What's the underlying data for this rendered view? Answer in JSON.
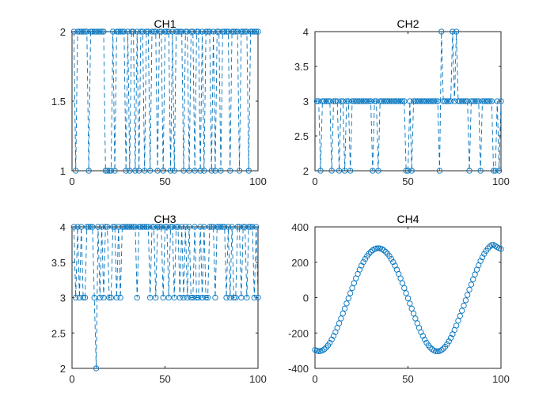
{
  "chart_data": [
    {
      "type": "line",
      "title": "CH1",
      "xlim": [
        0,
        100
      ],
      "ylim": [
        1,
        2
      ],
      "xticks": [
        0,
        50,
        100
      ],
      "yticks": [
        1,
        1.5,
        2
      ],
      "xtick_labels": [
        "0",
        "50",
        "100"
      ],
      "ytick_labels": [
        "1",
        "1.5",
        "2"
      ],
      "color": "#0072BD",
      "line_style": "dashed",
      "marker": "circle-open",
      "grid": false,
      "series": [
        {
          "x": [
            1,
            2,
            3,
            4,
            5,
            6,
            7,
            8,
            9,
            10,
            11,
            12,
            13,
            14,
            15,
            16,
            17,
            18,
            19,
            20,
            21,
            22,
            23,
            24,
            25,
            26,
            27,
            28,
            29,
            30,
            31,
            32,
            33,
            34,
            35,
            36,
            37,
            38,
            39,
            40,
            41,
            42,
            43,
            44,
            45,
            46,
            47,
            48,
            49,
            50,
            51,
            52,
            53,
            54,
            55,
            56,
            57,
            58,
            59,
            60,
            61,
            62,
            63,
            64,
            65,
            66,
            67,
            68,
            69,
            70,
            71,
            72,
            73,
            74,
            75,
            76,
            77,
            78,
            79,
            80,
            81,
            82,
            83,
            84,
            85,
            86,
            87,
            88,
            89,
            90,
            91,
            92,
            93,
            94,
            95,
            96,
            97,
            98,
            99,
            100
          ],
          "y": [
            2,
            1,
            2,
            2,
            2,
            2,
            2,
            2,
            1,
            2,
            2,
            2,
            2,
            2,
            2,
            2,
            2,
            1,
            1,
            1,
            1,
            2,
            1,
            2,
            2,
            2,
            2,
            2,
            1,
            2,
            1,
            2,
            2,
            1,
            2,
            1,
            2,
            2,
            1,
            2,
            2,
            1,
            2,
            2,
            2,
            1,
            2,
            2,
            1,
            2,
            2,
            2,
            1,
            2,
            1,
            2,
            2,
            2,
            2,
            1,
            2,
            2,
            1,
            2,
            2,
            1,
            2,
            2,
            1,
            2,
            1,
            2,
            2,
            2,
            1,
            2,
            1,
            2,
            2,
            1,
            2,
            2,
            2,
            2,
            1,
            2,
            2,
            2,
            2,
            1,
            2,
            2,
            2,
            2,
            1,
            2,
            2,
            2,
            2,
            2
          ]
        }
      ]
    },
    {
      "type": "line",
      "title": "CH2",
      "xlim": [
        0,
        100
      ],
      "ylim": [
        2,
        4
      ],
      "xticks": [
        0,
        50,
        100
      ],
      "yticks": [
        2,
        2.5,
        3,
        3.5,
        4
      ],
      "xtick_labels": [
        "0",
        "50",
        "100"
      ],
      "ytick_labels": [
        "2",
        "2.5",
        "3",
        "3.5",
        "4"
      ],
      "color": "#0072BD",
      "line_style": "dashed",
      "marker": "circle-open",
      "grid": false,
      "series": [
        {
          "x": [
            1,
            2,
            3,
            4,
            5,
            6,
            7,
            8,
            9,
            10,
            11,
            12,
            13,
            14,
            15,
            16,
            17,
            18,
            19,
            20,
            21,
            22,
            23,
            24,
            25,
            26,
            27,
            28,
            29,
            30,
            31,
            32,
            33,
            34,
            35,
            36,
            37,
            38,
            39,
            40,
            41,
            42,
            43,
            44,
            45,
            46,
            47,
            48,
            49,
            50,
            51,
            52,
            53,
            54,
            55,
            56,
            57,
            58,
            59,
            60,
            61,
            62,
            63,
            64,
            65,
            66,
            67,
            68,
            69,
            70,
            71,
            72,
            73,
            74,
            75,
            76,
            77,
            78,
            79,
            80,
            81,
            82,
            83,
            84,
            85,
            86,
            87,
            88,
            89,
            90,
            91,
            92,
            93,
            94,
            95,
            96,
            97,
            98,
            99,
            100
          ],
          "y": [
            3,
            3,
            2,
            3,
            3,
            3,
            3,
            3,
            2,
            3,
            3,
            3,
            2,
            3,
            3,
            2,
            3,
            3,
            2,
            3,
            3,
            3,
            3,
            3,
            3,
            3,
            3,
            3,
            3,
            3,
            2,
            3,
            3,
            2,
            3,
            3,
            3,
            3,
            3,
            3,
            3,
            3,
            3,
            3,
            3,
            3,
            3,
            3,
            2,
            2,
            3,
            2,
            3,
            3,
            3,
            3,
            3,
            3,
            3,
            3,
            3,
            3,
            3,
            3,
            3,
            3,
            2,
            4,
            3,
            3,
            3,
            3,
            3,
            4,
            3,
            4,
            3,
            3,
            3,
            3,
            3,
            3,
            2,
            3,
            3,
            3,
            3,
            3,
            2,
            3,
            3,
            3,
            3,
            3,
            3,
            2,
            2,
            3,
            2,
            3
          ]
        }
      ]
    },
    {
      "type": "line",
      "title": "CH3",
      "xlim": [
        0,
        100
      ],
      "ylim": [
        2,
        4
      ],
      "xticks": [
        0,
        50,
        100
      ],
      "yticks": [
        2,
        2.5,
        3,
        3.5,
        4
      ],
      "xtick_labels": [
        "0",
        "50",
        "100"
      ],
      "ytick_labels": [
        "2",
        "2.5",
        "3",
        "3.5",
        "4"
      ],
      "color": "#0072BD",
      "line_style": "dashed",
      "marker": "circle-open",
      "grid": false,
      "series": [
        {
          "x": [
            1,
            2,
            3,
            4,
            5,
            6,
            7,
            8,
            9,
            10,
            11,
            12,
            13,
            14,
            15,
            16,
            17,
            18,
            19,
            20,
            21,
            22,
            23,
            24,
            25,
            26,
            27,
            28,
            29,
            30,
            31,
            32,
            33,
            34,
            35,
            36,
            37,
            38,
            39,
            40,
            41,
            42,
            43,
            44,
            45,
            46,
            47,
            48,
            49,
            50,
            51,
            52,
            53,
            54,
            55,
            56,
            57,
            58,
            59,
            60,
            61,
            62,
            63,
            64,
            65,
            66,
            67,
            68,
            69,
            70,
            71,
            72,
            73,
            74,
            75,
            76,
            77,
            78,
            79,
            80,
            81,
            82,
            83,
            84,
            85,
            86,
            87,
            88,
            89,
            90,
            91,
            92,
            93,
            94,
            95,
            96,
            97,
            98,
            99,
            100
          ],
          "y": [
            4,
            3,
            4,
            3,
            4,
            3,
            3,
            4,
            4,
            4,
            4,
            3,
            2,
            4,
            3,
            4,
            3,
            4,
            4,
            3,
            3,
            4,
            4,
            3,
            4,
            3,
            4,
            4,
            4,
            4,
            4,
            4,
            4,
            4,
            3,
            4,
            4,
            4,
            4,
            4,
            4,
            3,
            4,
            4,
            3,
            4,
            4,
            4,
            3,
            4,
            4,
            3,
            4,
            4,
            3,
            4,
            4,
            3,
            4,
            3,
            4,
            3,
            4,
            3,
            3,
            4,
            3,
            3,
            4,
            3,
            4,
            3,
            3,
            4,
            4,
            4,
            3,
            4,
            4,
            4,
            4,
            4,
            3,
            4,
            3,
            4,
            3,
            3,
            4,
            4,
            3,
            4,
            4,
            3,
            4,
            4,
            4,
            3,
            4,
            3
          ]
        }
      ]
    },
    {
      "type": "scatter",
      "title": "CH4",
      "xlim": [
        0,
        100
      ],
      "ylim": [
        -400,
        400
      ],
      "xticks": [
        0,
        50,
        100
      ],
      "yticks": [
        -400,
        -200,
        0,
        200,
        400
      ],
      "xtick_labels": [
        "0",
        "50",
        "100"
      ],
      "ytick_labels": [
        "-400",
        "-200",
        "0",
        "200",
        "400"
      ],
      "color": "#0072BD",
      "marker": "circle-open",
      "grid": false,
      "series": [
        {
          "x": [
            0,
            1,
            2,
            3,
            4,
            5,
            6,
            7,
            8,
            9,
            10,
            11,
            12,
            13,
            14,
            15,
            16,
            17,
            18,
            19,
            20,
            21,
            22,
            23,
            24,
            25,
            26,
            27,
            28,
            29,
            30,
            31,
            32,
            33,
            34,
            35,
            36,
            37,
            38,
            39,
            40,
            41,
            42,
            43,
            44,
            45,
            46,
            47,
            48,
            49,
            50,
            51,
            52,
            53,
            54,
            55,
            56,
            57,
            58,
            59,
            60,
            61,
            62,
            63,
            64,
            65,
            66,
            67,
            68,
            69,
            70,
            71,
            72,
            73,
            74,
            75,
            76,
            77,
            78,
            79,
            80,
            81,
            82,
            83,
            84,
            85,
            86,
            87,
            88,
            89,
            90,
            91,
            92,
            93,
            94,
            95,
            96,
            97,
            98,
            99,
            100
          ],
          "y": [
            -296,
            -300,
            -303,
            -302,
            -299,
            -292,
            -283,
            -270,
            -255,
            -237,
            -217,
            -195,
            -171,
            -145,
            -118,
            -90,
            -62,
            -33,
            -4,
            25,
            54,
            82,
            109,
            134,
            158,
            181,
            201,
            219,
            235,
            248,
            259,
            268,
            274,
            278,
            279,
            278,
            274,
            268,
            259,
            248,
            235,
            219,
            201,
            181,
            158,
            134,
            109,
            82,
            54,
            25,
            -4,
            -33,
            -62,
            -90,
            -118,
            -145,
            -171,
            -195,
            -217,
            -237,
            -255,
            -270,
            -283,
            -292,
            -299,
            -303,
            -304,
            -302,
            -297,
            -289,
            -278,
            -264,
            -247,
            -228,
            -207,
            -183,
            -158,
            -131,
            -103,
            -74,
            -45,
            -15,
            15,
            45,
            74,
            103,
            131,
            158,
            183,
            207,
            228,
            247,
            264,
            278,
            289,
            297,
            298,
            292,
            285,
            279,
            275
          ]
        }
      ]
    }
  ]
}
